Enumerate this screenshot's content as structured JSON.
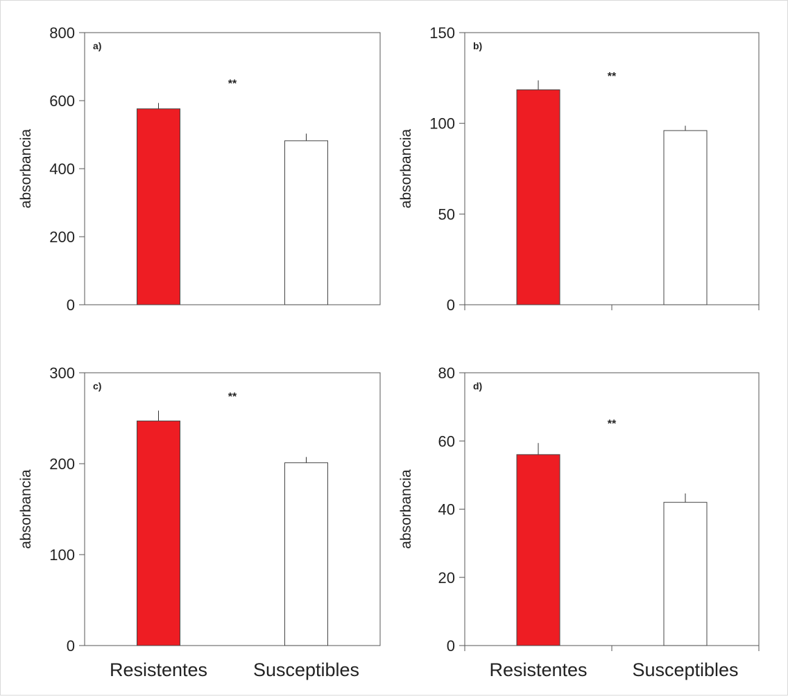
{
  "figure": {
    "x_categories": [
      "Resistentes",
      "Susceptibles"
    ]
  },
  "chart_data": [
    {
      "type": "bar",
      "panel_label": "a)",
      "categories": [
        "Resistentes",
        "Susceptibles"
      ],
      "values": [
        576,
        482
      ],
      "errors": [
        16,
        20
      ],
      "colors": [
        "#ee1d23",
        "#ffffff"
      ],
      "ylabel": "absorbancia",
      "xlabel": "",
      "ylim": [
        0,
        800
      ],
      "yticks": [
        0,
        200,
        400,
        600,
        800
      ],
      "significance": "**",
      "significance_y": 640,
      "grid": false
    },
    {
      "type": "bar",
      "panel_label": "b)",
      "categories": [
        "Resistentes",
        "Susceptibles"
      ],
      "values": [
        118.5,
        96
      ],
      "errors": [
        5,
        2.5
      ],
      "colors": [
        "#ee1d23",
        "#ffffff"
      ],
      "ylabel": "absorbancia",
      "xlabel": "",
      "ylim": [
        0,
        150
      ],
      "yticks": [
        0,
        50,
        100,
        150
      ],
      "significance": "**",
      "significance_y": 124,
      "grid": false
    },
    {
      "type": "bar",
      "panel_label": "c)",
      "categories": [
        "Resistentes",
        "Susceptibles"
      ],
      "values": [
        247,
        201
      ],
      "errors": [
        11,
        6
      ],
      "colors": [
        "#ee1d23",
        "#ffffff"
      ],
      "ylabel": "absorbancia",
      "xlabel": "",
      "ylim": [
        0,
        300
      ],
      "yticks": [
        0,
        100,
        200,
        300
      ],
      "significance": "**",
      "significance_y": 270,
      "grid": false
    },
    {
      "type": "bar",
      "panel_label": "d)",
      "categories": [
        "Resistentes",
        "Susceptibles"
      ],
      "values": [
        56,
        42
      ],
      "errors": [
        3.3,
        2.5
      ],
      "colors": [
        "#ee1d23",
        "#ffffff"
      ],
      "ylabel": "absorbancia",
      "xlabel": "",
      "ylim": [
        0,
        80
      ],
      "yticks": [
        0,
        20,
        40,
        60,
        80
      ],
      "significance": "**",
      "significance_y": 64,
      "grid": false
    }
  ]
}
